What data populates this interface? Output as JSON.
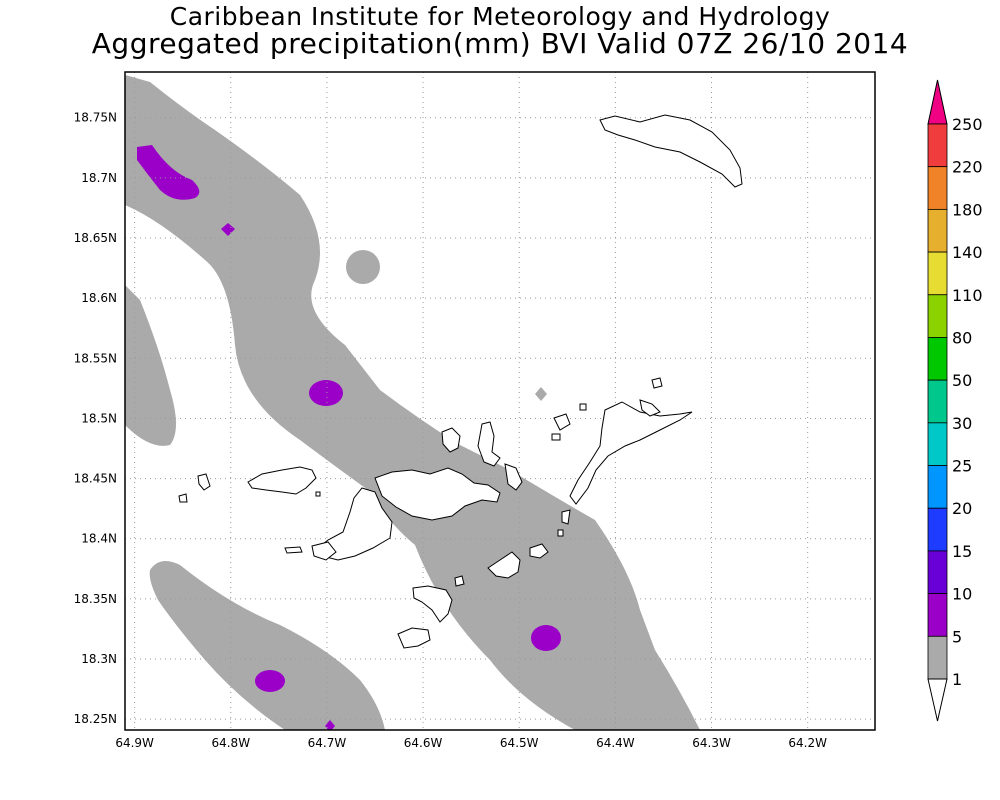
{
  "header": {
    "line1": "Caribbean Institute for Meteorology and Hydrology",
    "line2": "Aggregated precipitation(mm) BVI Valid 07Z 26/10 2014"
  },
  "map": {
    "lon_range": [
      -64.91,
      -64.13
    ],
    "lat_range": [
      18.241,
      18.788
    ],
    "lon_ticks": [
      "64.9W",
      "64.8W",
      "64.7W",
      "64.6W",
      "64.5W",
      "64.4W",
      "64.3W",
      "64.2W"
    ],
    "lat_ticks": [
      "18.75N",
      "18.7N",
      "18.65N",
      "18.6N",
      "18.55N",
      "18.5N",
      "18.45N",
      "18.4N",
      "18.35N",
      "18.3N",
      "18.25N"
    ],
    "grid": true
  },
  "colorbar": {
    "levels": [
      "1",
      "5",
      "10",
      "15",
      "20",
      "25",
      "30",
      "50",
      "80",
      "110",
      "140",
      "180",
      "220",
      "250"
    ],
    "colors": [
      "#ffffff",
      "#aaaaaa",
      "#9a00c8",
      "#6a00d8",
      "#1e3cff",
      "#0096ff",
      "#00c8c8",
      "#00c88c",
      "#00c800",
      "#8cd200",
      "#e6dc32",
      "#e6af2d",
      "#f08228",
      "#f03c3c",
      "#f00082"
    ]
  },
  "legend_colors": {
    "light_rain": "#aaaaaa",
    "moderate_rain": "#9a00c8",
    "land_outline": "#000000"
  }
}
